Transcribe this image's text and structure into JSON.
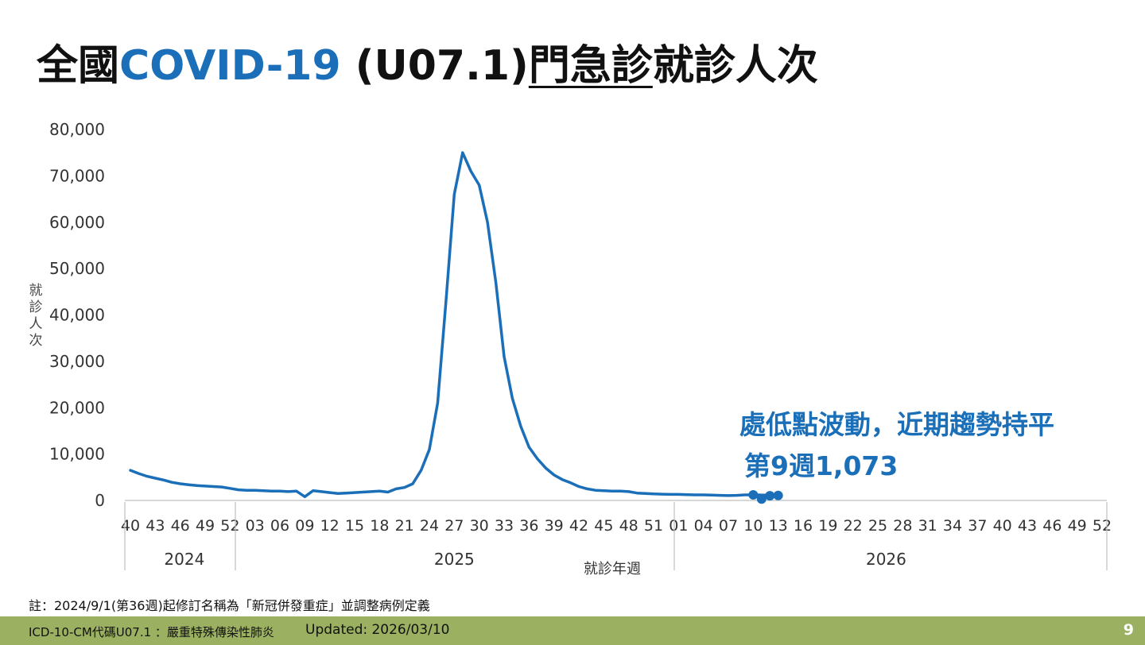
{
  "title": {
    "prefix": "全國",
    "highlight": "COVID-19",
    "code": " (U07.1)",
    "underlined": "門急診",
    "suffix": "就診人次"
  },
  "callout": {
    "line1": "處低點波動，近期趨勢持平",
    "line2": "第9週1,073"
  },
  "note": "註：2024/9/1(第36週)起修訂名稱為「新冠併發重症」並調整病例定義",
  "footer": {
    "left_text": "ICD-10-CM代碼U07.1 ：嚴重特殊傳染性肺炎",
    "updated": "Updated: 2026/03/10",
    "page_number": "9"
  },
  "colors": {
    "line": "#1a6fb8",
    "highlight": "#1a6fb8",
    "footer_bg": "#9bb060"
  },
  "chart_data": {
    "type": "line",
    "ylabel": "就診人次",
    "xlabel": "就診年週",
    "ylim": [
      0,
      80000
    ],
    "yticks": [
      "0",
      "10,000",
      "20,000",
      "30,000",
      "40,000",
      "50,000",
      "60,000",
      "70,000",
      "80,000"
    ],
    "xtick_labels": [
      "40",
      "43",
      "46",
      "49",
      "52",
      "03",
      "06",
      "09",
      "12",
      "15",
      "18",
      "21",
      "24",
      "27",
      "30",
      "33",
      "36",
      "39",
      "42",
      "45",
      "48",
      "51",
      "01",
      "04",
      "07",
      "10",
      "13",
      "16",
      "19",
      "22",
      "25",
      "28",
      "31",
      "34",
      "37",
      "40",
      "43",
      "46",
      "49",
      "52"
    ],
    "years": [
      {
        "label": "2024",
        "start_index": 0,
        "end_index": 13
      },
      {
        "label": "2025",
        "start_index": 13,
        "end_index": 65
      },
      {
        "label": "2026",
        "start_index": 65,
        "end_index": 117
      }
    ],
    "total_weeks": 118,
    "series": [
      {
        "values": [
          6500,
          5800,
          5200,
          4800,
          4400,
          3900,
          3600,
          3400,
          3200,
          3100,
          3000,
          2900,
          2600,
          2300,
          2200,
          2200,
          2100,
          2000,
          2000,
          1900,
          2000,
          800,
          2100,
          1900,
          1700,
          1500,
          1600,
          1700,
          1800,
          1900,
          2000,
          1800,
          2500,
          2800,
          3600,
          6500,
          11000,
          21000,
          43000,
          66000,
          75000,
          71000,
          68000,
          60000,
          47000,
          31000,
          22000,
          16000,
          11500,
          9000,
          7000,
          5500,
          4500,
          3800,
          3000,
          2500,
          2200,
          2100,
          2000,
          2000,
          1900,
          1600,
          1500,
          1400,
          1350,
          1300,
          1300,
          1250,
          1200,
          1200,
          1150,
          1100,
          1050,
          1100,
          1200,
          1200,
          1150,
          1100,
          1100
        ],
        "highlight_start": 75,
        "highlight_values": [
          1200,
          300,
          1000,
          1073
        ]
      }
    ]
  }
}
